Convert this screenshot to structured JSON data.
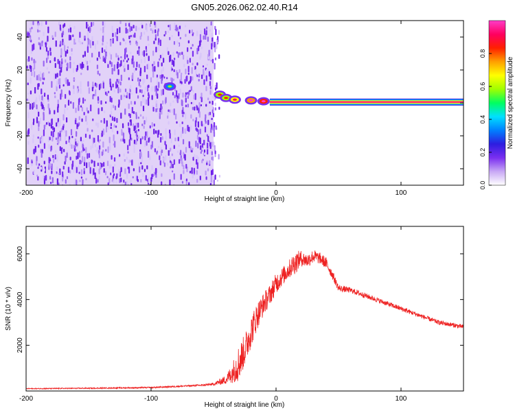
{
  "title": "GN05.2026.062.02.40.R14",
  "colors": {
    "line": "#ee2222",
    "sparse_bg": "#e2d2f8",
    "dots": [
      "#7a2ff0",
      "#6a1ee6",
      "#9a66f2",
      "#bb99f6",
      "#d8c6fa"
    ]
  },
  "colorbar": {
    "label": "Normalized spectral amplitude",
    "ticks": [
      "0.0",
      "0.2",
      "0.4",
      "0.6",
      "0.8"
    ],
    "tick_values": [
      0.0,
      0.2,
      0.4,
      0.6,
      0.8
    ],
    "range": [
      0,
      1
    ],
    "colormap": [
      "#ffffff",
      "#c8a8f5",
      "#7a2ff0",
      "#2d1de0",
      "#0080ff",
      "#00e0ff",
      "#00ff60",
      "#a0ff00",
      "#ffff00",
      "#ffa000",
      "#ff2000",
      "#ff0060",
      "#ff3cc8"
    ]
  },
  "chart_data": [
    {
      "type": "heatmap",
      "xlabel": "Height of straight line (km)",
      "ylabel": "Frequency (Hz)",
      "xlim": [
        -200,
        150
      ],
      "ylim": [
        -50,
        50
      ],
      "xticks": [
        "-200",
        "-100",
        "0",
        "100"
      ],
      "xtick_values": [
        -200,
        -100,
        0,
        100
      ],
      "yticks": [
        "-40",
        "-20",
        "0",
        "20",
        "40"
      ],
      "ytick_values": [
        -40,
        -20,
        0,
        20,
        40
      ],
      "noise_region_km": [
        -200,
        -50
      ],
      "features": [
        {
          "x": -85,
          "y": 10,
          "amplitude": 0.35
        },
        {
          "x": -45,
          "y": 5,
          "amplitude": 0.55
        },
        {
          "x": -40,
          "y": 3,
          "amplitude": 0.6
        },
        {
          "x": -33,
          "y": 2,
          "amplitude": 0.7
        },
        {
          "x": -20,
          "y": 1.5,
          "amplitude": 0.75
        },
        {
          "x": -10,
          "y": 1,
          "amplitude": 0.85
        }
      ],
      "line": {
        "x_start": -5,
        "x_end": 150,
        "y": 0.5,
        "amplitude": 1.0
      }
    },
    {
      "type": "line",
      "xlabel": "Height of straight line (km)",
      "ylabel": "SNR (10 * v/v)",
      "xlim": [
        -200,
        150
      ],
      "ylim": [
        0,
        7200
      ],
      "xticks": [
        "-200",
        "-100",
        "0",
        "100"
      ],
      "xtick_values": [
        -200,
        -100,
        0,
        100
      ],
      "yticks": [
        "2000",
        "4000",
        "6000"
      ],
      "ytick_values": [
        2000,
        4000,
        6000
      ],
      "x": [
        -200,
        -150,
        -100,
        -60,
        -50,
        -40,
        -35,
        -30,
        -25,
        -20,
        -15,
        -10,
        -5,
        0,
        5,
        10,
        15,
        20,
        25,
        30,
        35,
        40,
        45,
        50,
        60,
        70,
        80,
        90,
        100,
        110,
        120,
        130,
        140,
        150
      ],
      "y": [
        100,
        120,
        150,
        250,
        300,
        500,
        800,
        1200,
        1800,
        2600,
        3300,
        3800,
        4200,
        4700,
        5000,
        5300,
        5600,
        5800,
        5700,
        5900,
        5800,
        5600,
        5100,
        4500,
        4400,
        4200,
        4000,
        3800,
        3600,
        3400,
        3200,
        3000,
        2900,
        2800
      ],
      "noise_amplitude": [
        20,
        25,
        30,
        40,
        60,
        200,
        450,
        800,
        700,
        700,
        600,
        500,
        450,
        450,
        400,
        400,
        500,
        350,
        300,
        300,
        250,
        250,
        200,
        150,
        120,
        120,
        110,
        110,
        110,
        100,
        100,
        100,
        100,
        100
      ]
    }
  ]
}
